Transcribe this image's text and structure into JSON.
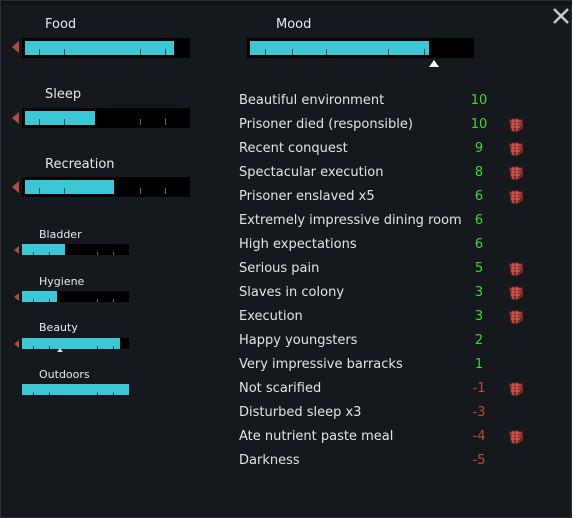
{
  "colors": {
    "bar_fill": "#3cc7d6",
    "positive": "#3fd43b",
    "negative": "#c0473a",
    "arrow": "#b34a3d"
  },
  "needs": [
    {
      "label": "Food",
      "level": 0.92
    },
    {
      "label": "Sleep",
      "level": 0.43
    },
    {
      "label": "Recreation",
      "level": 0.55
    },
    {
      "label": "Bladder",
      "level": 0.4
    },
    {
      "label": "Hygiene",
      "level": 0.33
    },
    {
      "label": "Beauty",
      "level": 0.92
    },
    {
      "label": "Outdoors",
      "level": 1.0
    }
  ],
  "mood": {
    "label": "Mood",
    "level": 0.81
  },
  "thoughts": [
    {
      "label": "Beautiful environment",
      "value": "10",
      "icon": ""
    },
    {
      "label": "Prisoner died (responsible)",
      "value": "10",
      "icon": "prisoner-hand-icon"
    },
    {
      "label": "Recent conquest",
      "value": "9",
      "icon": "prisoner-hand-icon"
    },
    {
      "label": "Spectacular execution",
      "value": "8",
      "icon": "prisoner-hand-icon"
    },
    {
      "label": "Prisoner enslaved x5",
      "value": "6",
      "icon": "prisoner-hand-icon"
    },
    {
      "label": "Extremely impressive dining room",
      "value": "6",
      "icon": ""
    },
    {
      "label": "High expectations",
      "value": "6",
      "icon": ""
    },
    {
      "label": "Serious pain",
      "value": "5",
      "icon": "prisoner-hand-icon"
    },
    {
      "label": "Slaves in colony",
      "value": "3",
      "icon": "prisoner-hand-icon"
    },
    {
      "label": "Execution",
      "value": "3",
      "icon": "prisoner-hand-icon"
    },
    {
      "label": "Happy youngsters",
      "value": "2",
      "icon": ""
    },
    {
      "label": "Very impressive barracks",
      "value": "1",
      "icon": ""
    },
    {
      "label": "Not scarified",
      "value": "-1",
      "icon": "prisoner-hand-icon"
    },
    {
      "label": "Disturbed sleep x3",
      "value": "-3",
      "icon": ""
    },
    {
      "label": "Ate nutrient paste meal",
      "value": "-4",
      "icon": "prisoner-hand-icon"
    },
    {
      "label": "Darkness",
      "value": "-5",
      "icon": ""
    }
  ],
  "close_icon": "close-icon"
}
